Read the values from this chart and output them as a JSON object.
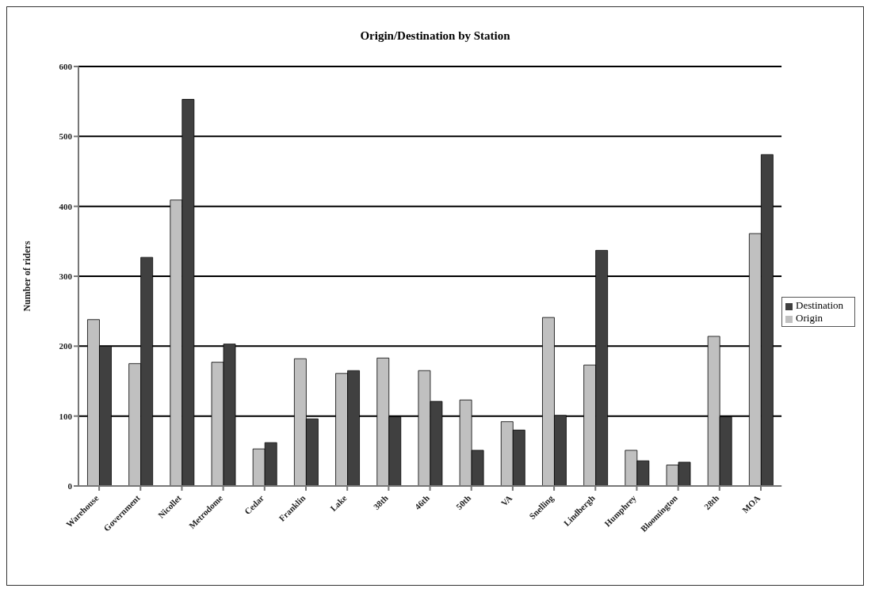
{
  "chart_data": {
    "type": "bar",
    "title": "Origin/Destination by Station",
    "ylabel": "Number of riders",
    "categories": [
      "Warehouse",
      "Government",
      "Nicollet",
      "Metrodome",
      "Cedar",
      "Franklin",
      "Lake",
      "38th",
      "46th",
      "50th",
      "VA",
      "Snelling",
      "Lindbergh",
      "Humphrey",
      "Bloomington",
      "28th",
      "MOA"
    ],
    "series": [
      {
        "name": "Origin",
        "color": "#c0c0c0",
        "values": [
          238,
          175,
          409,
          177,
          53,
          182,
          161,
          183,
          165,
          123,
          92,
          241,
          173,
          51,
          30,
          214,
          361
        ]
      },
      {
        "name": "Destination",
        "color": "#404040",
        "values": [
          200,
          327,
          553,
          203,
          62,
          96,
          165,
          99,
          121,
          51,
          80,
          101,
          337,
          36,
          34,
          99,
          474
        ]
      }
    ],
    "ylim": [
      0,
      600
    ],
    "yticks": [
      0,
      100,
      200,
      300,
      400,
      500,
      600
    ],
    "grid": "y",
    "legend": "right"
  }
}
